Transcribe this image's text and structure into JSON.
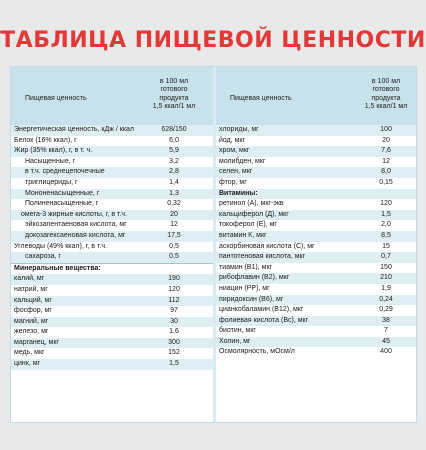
{
  "title": "ТАБЛИЦА ПИЩЕВОЙ ЦЕННОСТИ",
  "header": {
    "name_label": "Пищевая ценность",
    "value_label_line1": "в 100 мл",
    "value_label_line2": "готового",
    "value_label_line3": "продукта",
    "value_label_line4": "1,5 ккал/1 мл"
  },
  "left_rows": [
    {
      "name": "Энергетическая ценность, кДж / ккал",
      "value": "628/150",
      "shade": true,
      "indent": 0
    },
    {
      "name": "Белок (16% ккал), г",
      "value": "6,0",
      "shade": false,
      "indent": 0
    },
    {
      "name": "Жир (35% ккал), г, в т. ч.",
      "value": "5,9",
      "shade": true,
      "indent": 0
    },
    {
      "name": "Насыщенные, г",
      "value": "3,2",
      "shade": false,
      "indent": 2
    },
    {
      "name": "в т.ч. среднецепочечные",
      "value": "2,8",
      "shade": true,
      "indent": 2
    },
    {
      "name": "триглицериды, г",
      "value": "1,4",
      "shade": false,
      "indent": 2
    },
    {
      "name": "Мононенасыщенные, г",
      "value": "1,3",
      "shade": true,
      "indent": 2
    },
    {
      "name": "Полиненасыщенные, г",
      "value": "0,32",
      "shade": false,
      "indent": 2
    },
    {
      "name": "омега-3 жирные кислоты, г, в т.ч.",
      "value": "20",
      "shade": true,
      "indent": 1
    },
    {
      "name": "эйкозапентаеновая кислота, мг",
      "value": "12",
      "shade": false,
      "indent": 2
    },
    {
      "name": "докозагексаеновая кислота, мг",
      "value": "17,5",
      "shade": true,
      "indent": 2
    },
    {
      "name": "Углеводы (49% ккал), г, в т.ч.",
      "value": "0,5",
      "shade": false,
      "indent": 0
    },
    {
      "name": "сахароза, г",
      "value": "0,5",
      "shade": true,
      "indent": 2
    },
    {
      "name": "Минеральные вещества:",
      "value": "",
      "shade": false,
      "indent": 0,
      "section": true
    },
    {
      "name": "калий, мг",
      "value": "190",
      "shade": true,
      "indent": 0
    },
    {
      "name": "натрий, мг",
      "value": "120",
      "shade": false,
      "indent": 0
    },
    {
      "name": "кальций, мг",
      "value": "112",
      "shade": true,
      "indent": 0
    },
    {
      "name": "фосфор, мг",
      "value": "97",
      "shade": false,
      "indent": 0
    },
    {
      "name": "магний, мг",
      "value": "30",
      "shade": true,
      "indent": 0
    },
    {
      "name": "железо, мг",
      "value": "1,6",
      "shade": false,
      "indent": 0
    },
    {
      "name": "марганец, мкг",
      "value": "300",
      "shade": true,
      "indent": 0
    },
    {
      "name": "медь, мкг",
      "value": "152",
      "shade": false,
      "indent": 0
    },
    {
      "name": "цинк, мг",
      "value": "1,5",
      "shade": true,
      "indent": 0
    }
  ],
  "right_rows": [
    {
      "name": "хлориды, мг",
      "value": "100",
      "shade": true
    },
    {
      "name": "йод, мкг",
      "value": "20",
      "shade": false
    },
    {
      "name": "хром, мкг",
      "value": "7,6",
      "shade": true
    },
    {
      "name": "молибден, мкг",
      "value": "12",
      "shade": false
    },
    {
      "name": "селен, мкг",
      "value": "8,0",
      "shade": true
    },
    {
      "name": "фтор, мг",
      "value": "0,15",
      "shade": false
    },
    {
      "name": "Витамины:",
      "value": "",
      "shade": true,
      "section": true
    },
    {
      "name": "ретинол (А), мкг-экв",
      "value": "120",
      "shade": false
    },
    {
      "name": "кальциферол (Д), мкг",
      "value": "1,5",
      "shade": true
    },
    {
      "name": "токоферол (Е), мг",
      "value": "2,0",
      "shade": false
    },
    {
      "name": "витамин К, мкг",
      "value": "8,5",
      "shade": true
    },
    {
      "name": "аскорбиновая кислота (С), мг",
      "value": "15",
      "shade": false
    },
    {
      "name": "пантотеновая кислота, мкг",
      "value": "0,7",
      "shade": true
    },
    {
      "name": "тиамин (В1), мкг",
      "value": "150",
      "shade": false
    },
    {
      "name": "рибофлавин (В2), мкг",
      "value": "210",
      "shade": true
    },
    {
      "name": "ниацин (РР), мг",
      "value": "1,9",
      "shade": false
    },
    {
      "name": "пиридоксин (В6), мг",
      "value": "0,24",
      "shade": true
    },
    {
      "name": "цианкобаламин (В12), мкг",
      "value": "0,29",
      "shade": false
    },
    {
      "name": "фолиевая кислота (Вс), мкг",
      "value": "38",
      "shade": true
    },
    {
      "name": "биотин, мкг",
      "value": "7",
      "shade": false
    },
    {
      "name": "Холин, мг",
      "value": "45",
      "shade": true
    },
    {
      "name": "Осмолярность, мОсм/л",
      "value": "400",
      "shade": false
    }
  ]
}
